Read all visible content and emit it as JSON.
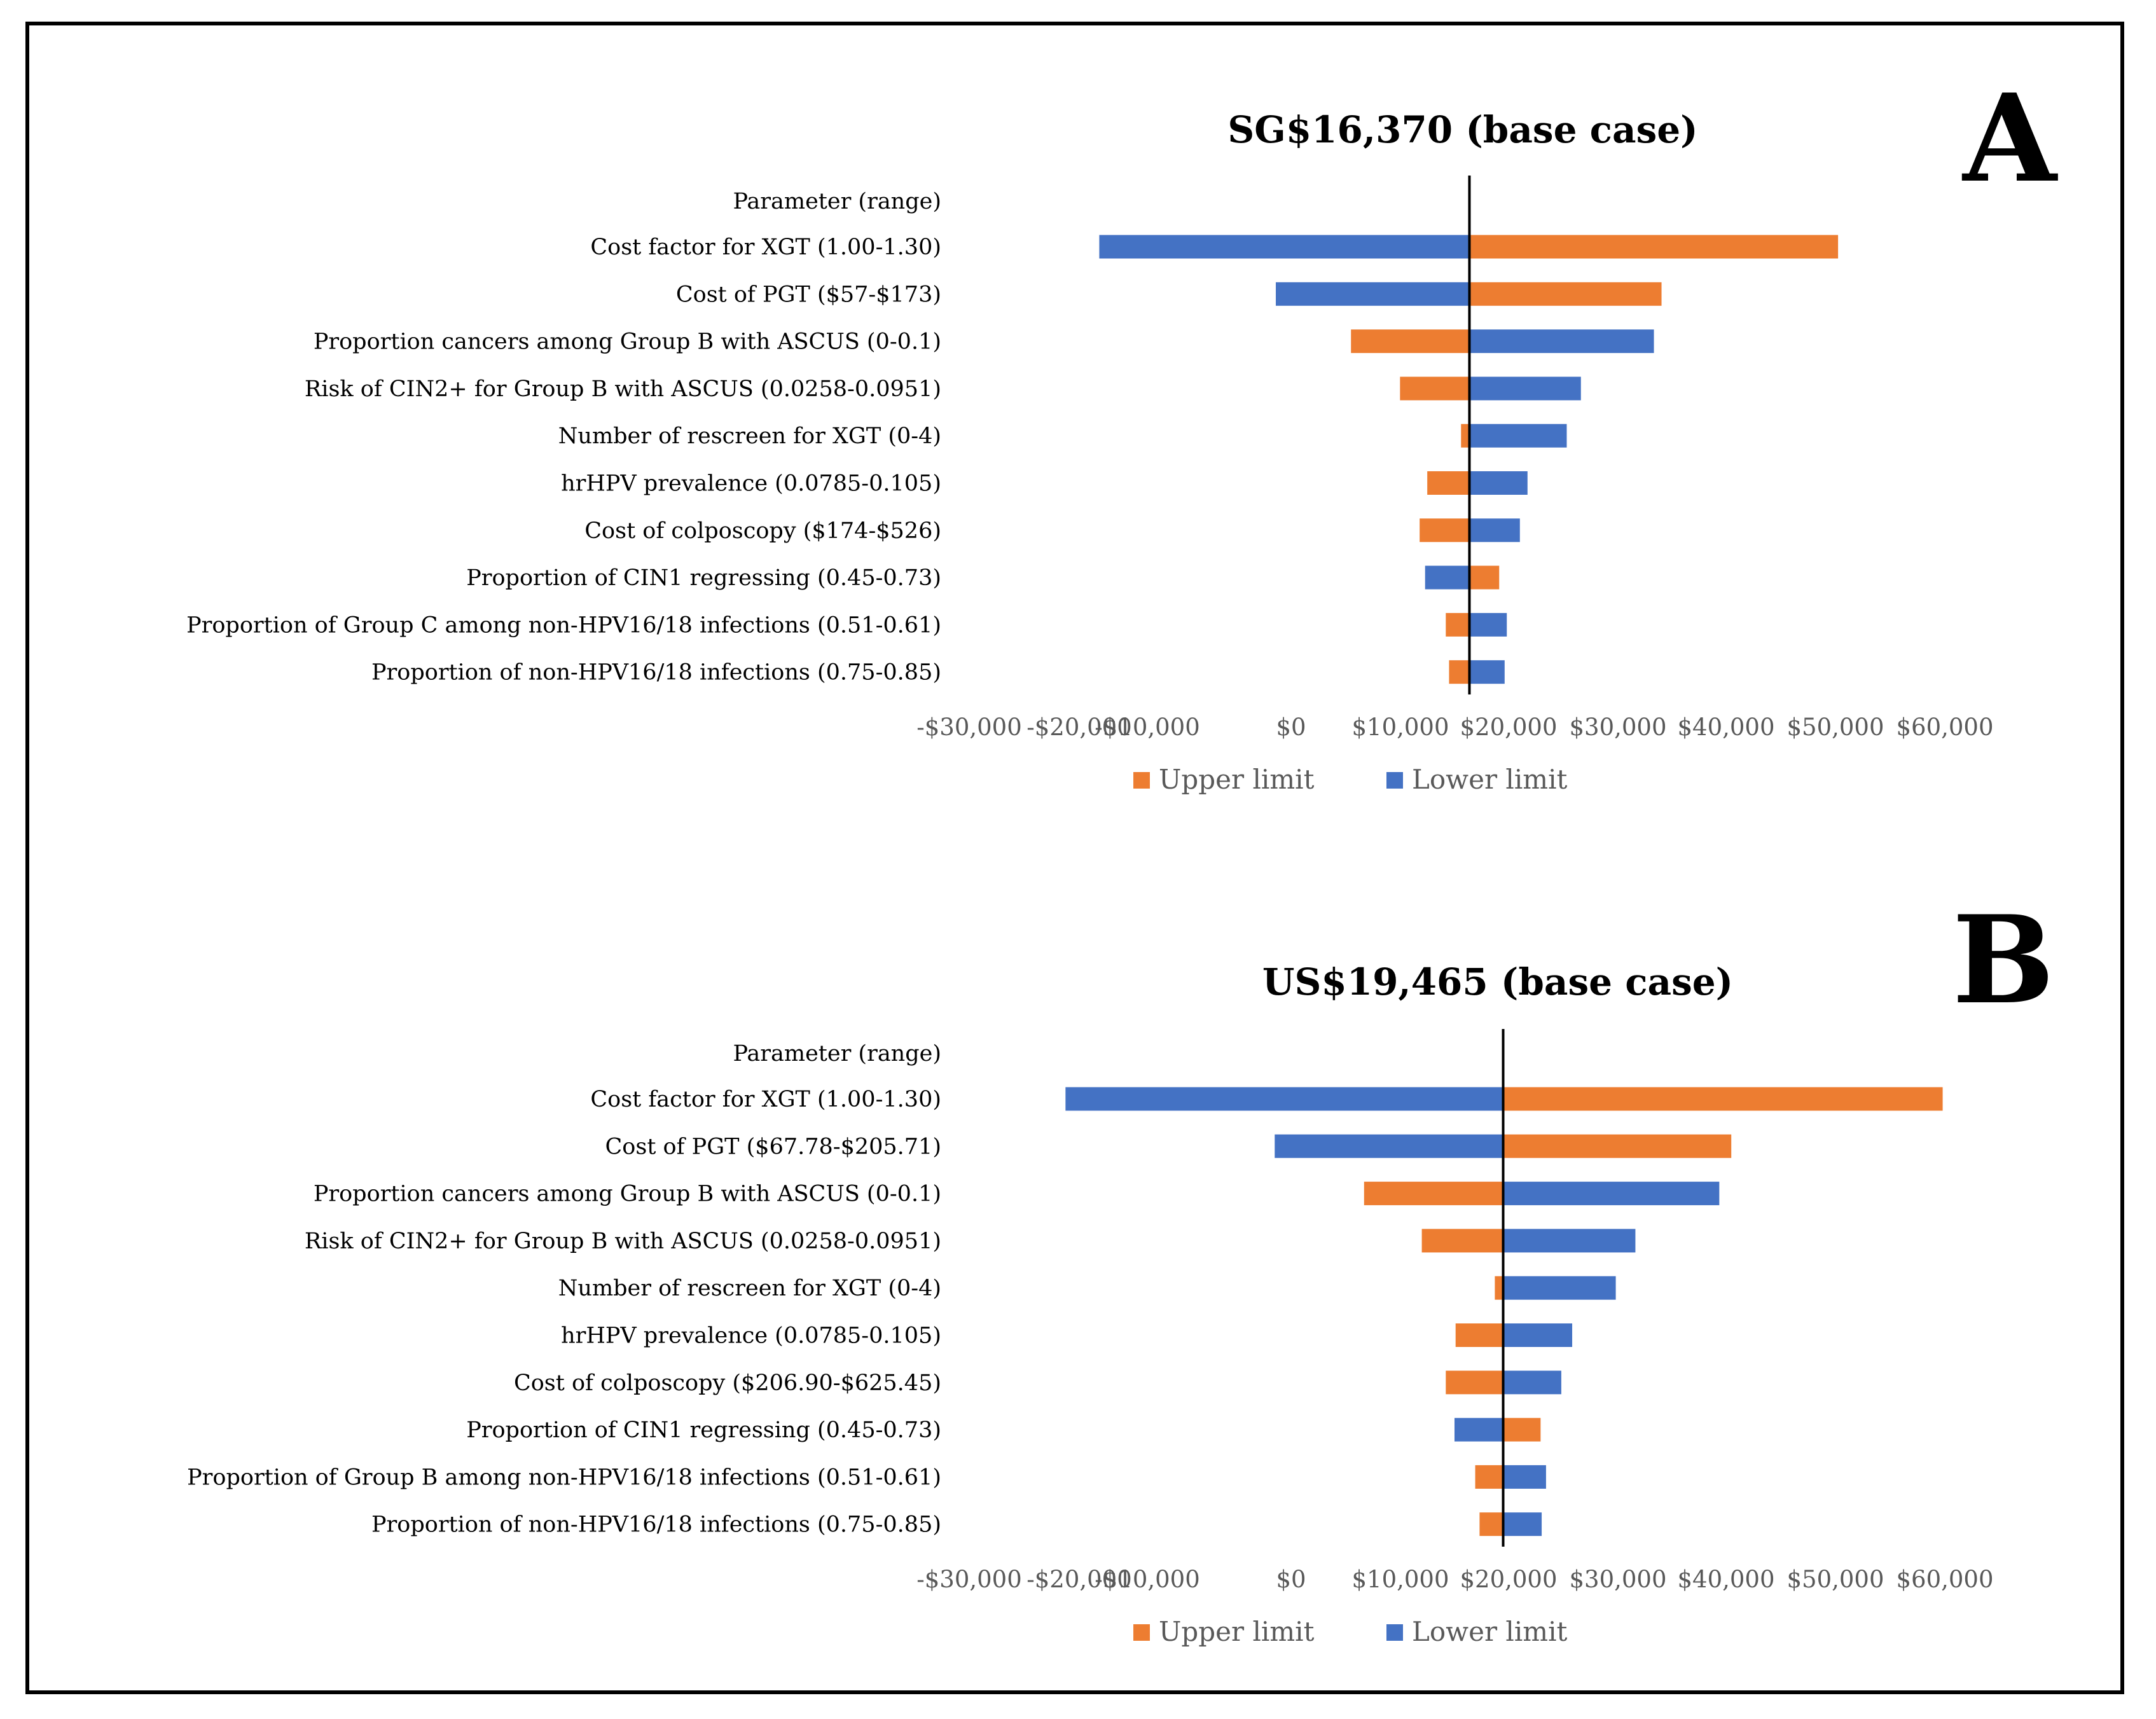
{
  "colors": {
    "upper": "#ED7D31",
    "lower": "#4472C4",
    "axis": "#000000",
    "tick_text": "#595959"
  },
  "chart_data": [
    {
      "type": "bar",
      "orientation": "horizontal-tornado",
      "panel_label": "A",
      "title": "SG$16,370 (base case)",
      "base_value": 16370,
      "header_label": "Parameter (range)",
      "x_ticks": [
        "-$30,000",
        "-$20,000",
        "-$10,000",
        "$0",
        "$10,000",
        "$20,000",
        "$30,000",
        "$40,000",
        "$50,000",
        "$60,000"
      ],
      "xlim": [
        -30000,
        60000
      ],
      "legend": {
        "upper": "Upper limit",
        "lower": "Lower limit",
        "placement": "bottom"
      },
      "categories": [
        "Cost factor for XGT (1.00-1.30)",
        "Cost of PGT ($57-$173)",
        "Proportion cancers among Group B with ASCUS (0-0.1)",
        "Risk of CIN2+ for Group B with ASCUS (0.0258-0.0951)",
        "Number of rescreen for XGT (0-4)",
        "hrHPV prevalence (0.0785-0.105)",
        "Cost of colposcopy ($174-$526)",
        "Proportion of CIN1 regressing (0.45-0.73)",
        "Proportion of Group C among non-HPV16/18 infections (0.51-0.61)",
        "Proportion of non-HPV16/18 infections (0.75-0.85)"
      ],
      "series": [
        {
          "name": "Upper limit",
          "values": [
            50200,
            34000,
            5500,
            10000,
            15600,
            12500,
            11800,
            19100,
            14200,
            14500
          ]
        },
        {
          "name": "Lower limit",
          "values": [
            -17600,
            -1400,
            33300,
            26600,
            25300,
            21700,
            21000,
            12300,
            19800,
            19600
          ]
        }
      ]
    },
    {
      "type": "bar",
      "orientation": "horizontal-tornado",
      "panel_label": "B",
      "title": "US$19,465 (base case)",
      "base_value": 19465,
      "header_label": "Parameter (range)",
      "x_ticks": [
        "-$30,000",
        "-$20,000",
        "-$10,000",
        "$0",
        "$10,000",
        "$20,000",
        "$30,000",
        "$40,000",
        "$50,000",
        "$60,000"
      ],
      "xlim": [
        -30000,
        60000
      ],
      "legend": {
        "upper": "Upper limit",
        "lower": "Lower limit",
        "placement": "bottom"
      },
      "categories": [
        "Cost factor for XGT (1.00-1.30)",
        "Cost of PGT ($67.78-$205.71)",
        "Proportion cancers among Group B with ASCUS (0-0.1)",
        "Risk of CIN2+ for Group B with ASCUS (0.0258-0.0951)",
        "Number of rescreen for XGT (0-4)",
        "hrHPV prevalence (0.0785-0.105)",
        "Cost of colposcopy ($206.90-$625.45)",
        "Proportion of CIN1 regressing (0.45-0.73)",
        "Proportion of Group B among non-HPV16/18 infections (0.51-0.61)",
        "Proportion of non-HPV16/18 infections (0.75-0.85)"
      ],
      "series": [
        {
          "name": "Upper limit",
          "values": [
            59800,
            40400,
            6700,
            12000,
            18700,
            15100,
            14200,
            22900,
            16900,
            17300
          ]
        },
        {
          "name": "Lower limit",
          "values": [
            -20700,
            -1500,
            39300,
            31600,
            29800,
            25800,
            24800,
            15000,
            23400,
            23000
          ]
        }
      ]
    }
  ]
}
